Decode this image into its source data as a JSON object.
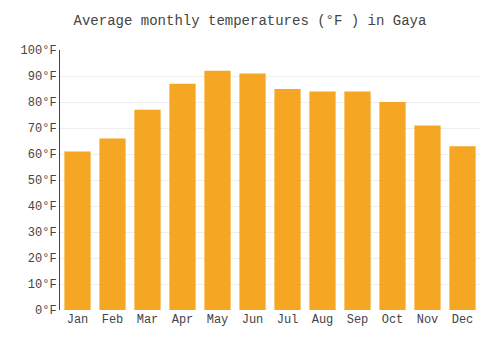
{
  "chart_data": {
    "type": "bar",
    "title": "Average monthly temperatures (°F ) in Gaya",
    "categories": [
      "Jan",
      "Feb",
      "Mar",
      "Apr",
      "May",
      "Jun",
      "Jul",
      "Aug",
      "Sep",
      "Oct",
      "Nov",
      "Dec"
    ],
    "values": [
      61,
      66,
      77,
      87,
      92,
      91,
      85,
      84,
      84,
      80,
      71,
      63
    ],
    "color": "#F5A623",
    "ylim": [
      0,
      100
    ],
    "yticks": [
      {
        "value": 0,
        "label": "0°F"
      },
      {
        "value": 10,
        "label": "10°F"
      },
      {
        "value": 20,
        "label": "20°F"
      },
      {
        "value": 30,
        "label": "30°F"
      },
      {
        "value": 40,
        "label": "40°F"
      },
      {
        "value": 50,
        "label": "50°F"
      },
      {
        "value": 60,
        "label": "60°F"
      },
      {
        "value": 70,
        "label": "70°F"
      },
      {
        "value": 80,
        "label": "80°F"
      },
      {
        "value": 90,
        "label": "90°F"
      },
      {
        "value": 100,
        "label": "100°F"
      }
    ],
    "grid": true
  }
}
